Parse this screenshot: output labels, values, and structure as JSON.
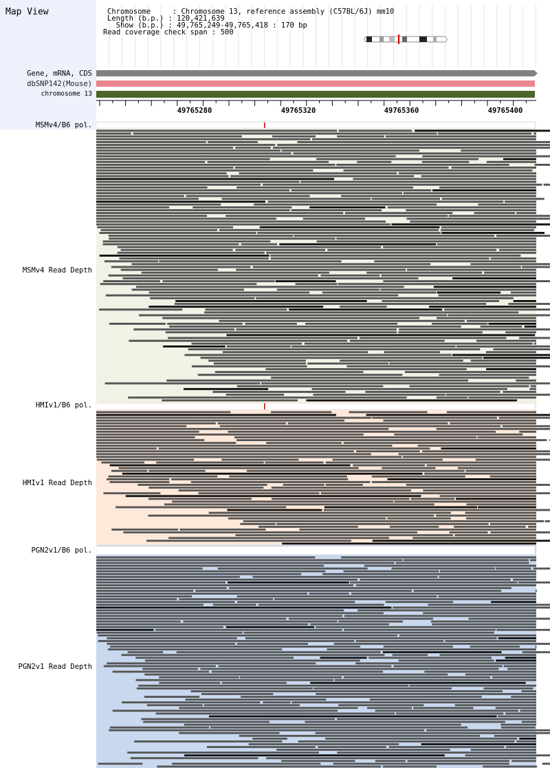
{
  "header": {
    "title": "Map View",
    "chromosome_key": "Chromosome    ",
    "chromosome_value": "Chromosome 13, reference assembly (C57BL/6J) mm10",
    "length_key": "Length (b.p.)",
    "length_value": "120,421,639",
    "show_key": "  Show (b.p.)",
    "show_value": "49,765,249-49,765,418 : 170 bp",
    "coverage_key": "Read coverage check span",
    "coverage_value": "500"
  },
  "tracks": {
    "gene_label": "Gene, mRNA, CDS",
    "dbsnp_label": "dbSNP142(Mouse)",
    "chrom_label": "chromosome 13"
  },
  "ruler": {
    "ticks": [
      "49765280",
      "49765320",
      "49765360",
      "49765400"
    ]
  },
  "samples": [
    {
      "pol_label": "MSMv4/B6 pol.",
      "depth_label": "MSMv4 Read Depth",
      "bg_color": "#eef3e6"
    },
    {
      "pol_label": "HMIv1/B6 pol.",
      "depth_label": "HMIv1 Read Depth",
      "bg_color": "#fde8d9"
    },
    {
      "pol_label": "PGN2v1/B6 pol.",
      "depth_label": "PGN2v1 Read Depth",
      "bg_color": "#c8d8ee"
    }
  ],
  "colors": {
    "gene_track": "#808080",
    "dbsnp_track": "#e8868e",
    "chrom_track": "#4a6628",
    "read": "#555555",
    "read_dark": "#111111",
    "snp_marker": "#cc0000"
  }
}
